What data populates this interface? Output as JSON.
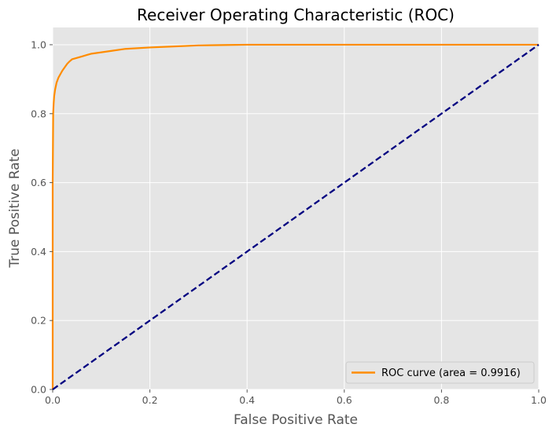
{
  "chart_data": {
    "type": "line",
    "title": "Receiver Operating Characteristic (ROC)",
    "xlabel": "False Positive Rate",
    "ylabel": "True Positive Rate",
    "xlim": [
      0.0,
      1.0
    ],
    "ylim": [
      0.0,
      1.05
    ],
    "x_ticks": [
      "0.0",
      "0.2",
      "0.4",
      "0.6",
      "0.8",
      "1.0"
    ],
    "y_ticks": [
      "0.0",
      "0.2",
      "0.4",
      "0.6",
      "0.8",
      "1.0"
    ],
    "grid": true,
    "legend_position": "lower-right",
    "series": [
      {
        "name": "ROC curve (area = 0.9916)",
        "color": "#ff8c00",
        "style": "solid",
        "x": [
          0.0,
          0.0,
          0.001,
          0.002,
          0.003,
          0.005,
          0.008,
          0.012,
          0.016,
          0.02,
          0.025,
          0.03,
          0.035,
          0.04,
          0.05,
          0.06,
          0.07,
          0.08,
          0.09,
          0.1,
          0.12,
          0.15,
          0.2,
          0.25,
          0.3,
          0.35,
          0.4,
          0.5,
          0.7,
          1.0
        ],
        "y": [
          0.0,
          0.6,
          0.8,
          0.83,
          0.85,
          0.87,
          0.89,
          0.905,
          0.915,
          0.925,
          0.935,
          0.945,
          0.952,
          0.958,
          0.962,
          0.966,
          0.97,
          0.974,
          0.976,
          0.978,
          0.982,
          0.988,
          0.992,
          0.995,
          0.998,
          0.999,
          1.0,
          1.0,
          1.0,
          1.0
        ]
      },
      {
        "name": "",
        "color": "#000080",
        "style": "dashed",
        "x": [
          0.0,
          1.0
        ],
        "y": [
          0.0,
          1.0
        ]
      }
    ]
  }
}
